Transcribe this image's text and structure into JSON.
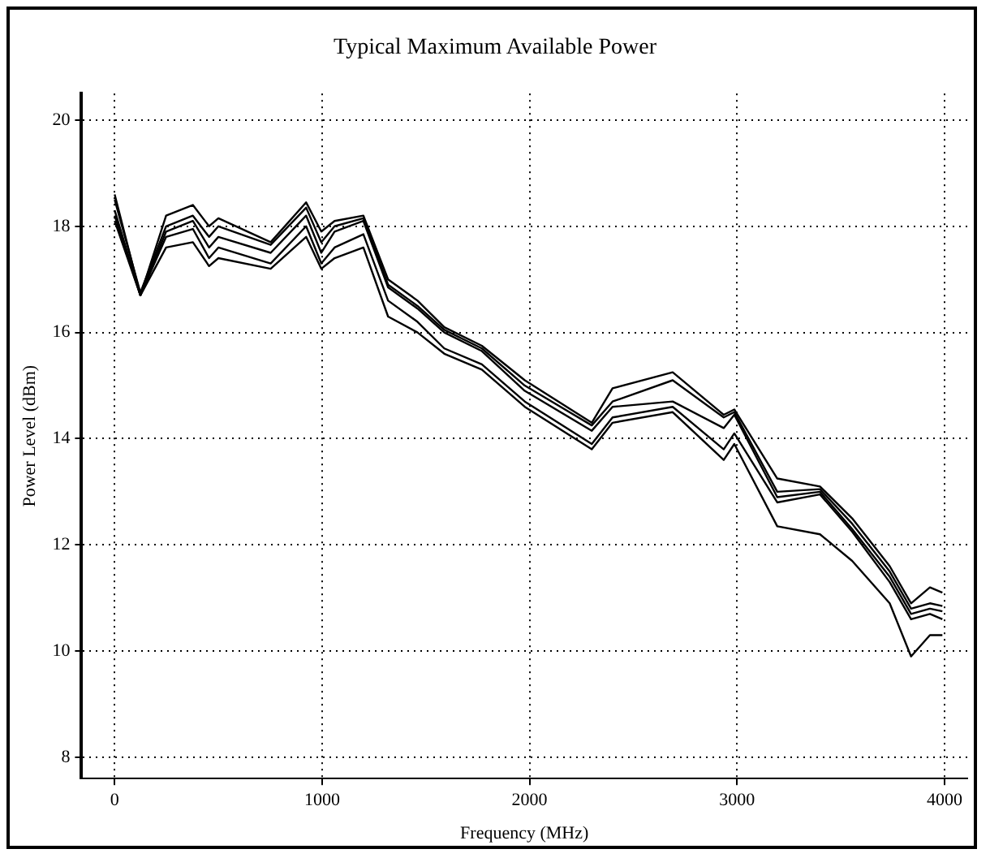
{
  "chart_data": {
    "type": "line",
    "title": "Typical Maximum Available Power",
    "xlabel": "Frequency (MHz)",
    "ylabel": "Power Level (dBm)",
    "x": [
      0,
      124,
      248,
      377,
      455,
      500,
      752,
      923,
      996,
      1060,
      1199,
      1318,
      1460,
      1589,
      1770,
      1977,
      2300,
      2400,
      2690,
      2936,
      2987,
      3194,
      3400,
      3555,
      3736,
      3839,
      3930,
      3990
    ],
    "series": [
      {
        "color": "#000000",
        "values": [
          18.6,
          16.7,
          18.2,
          18.4,
          18.0,
          18.15,
          17.7,
          18.45,
          17.9,
          18.1,
          18.2,
          17.0,
          16.6,
          16.1,
          15.75,
          15.1,
          14.3,
          14.95,
          15.25,
          14.45,
          14.55,
          13.25,
          13.1,
          12.5,
          11.6,
          10.9,
          11.2,
          11.1
        ]
      },
      {
        "color": "#000000",
        "values": [
          18.5,
          16.75,
          18.0,
          18.2,
          17.8,
          18.0,
          17.65,
          18.35,
          17.7,
          18.0,
          18.15,
          16.9,
          16.5,
          16.05,
          15.7,
          15.0,
          14.25,
          14.7,
          15.1,
          14.4,
          14.5,
          13.0,
          13.05,
          12.4,
          11.5,
          10.8,
          10.9,
          10.85
        ]
      },
      {
        "color": "#000000",
        "values": [
          18.3,
          16.7,
          17.9,
          18.1,
          17.6,
          17.8,
          17.5,
          18.2,
          17.5,
          17.9,
          18.1,
          16.85,
          16.45,
          16.0,
          15.65,
          14.9,
          14.15,
          14.6,
          14.7,
          14.2,
          14.45,
          12.9,
          13.0,
          12.3,
          11.4,
          10.7,
          10.8,
          10.75
        ]
      },
      {
        "color": "#000000",
        "values": [
          18.2,
          16.7,
          17.8,
          17.95,
          17.4,
          17.6,
          17.3,
          18.0,
          17.3,
          17.6,
          17.85,
          16.6,
          16.2,
          15.7,
          15.4,
          14.7,
          13.9,
          14.4,
          14.6,
          13.8,
          14.1,
          12.8,
          12.95,
          12.25,
          11.3,
          10.6,
          10.7,
          10.6
        ]
      },
      {
        "color": "#000000",
        "values": [
          18.1,
          16.7,
          17.6,
          17.7,
          17.25,
          17.4,
          17.2,
          17.8,
          17.2,
          17.4,
          17.6,
          16.3,
          16.0,
          15.6,
          15.3,
          14.6,
          13.8,
          14.3,
          14.5,
          13.6,
          13.9,
          12.35,
          12.2,
          11.7,
          10.9,
          9.9,
          10.3,
          10.3
        ]
      }
    ],
    "xlim": [
      -160,
      4110
    ],
    "xticks": [
      0,
      1000,
      2000,
      3000,
      4000
    ],
    "ylim": [
      7.6,
      20.5
    ],
    "yticks": [
      8,
      10,
      12,
      14,
      16,
      18,
      20
    ],
    "grid": true,
    "legend": false,
    "marker": "none",
    "line_style": "solid"
  }
}
